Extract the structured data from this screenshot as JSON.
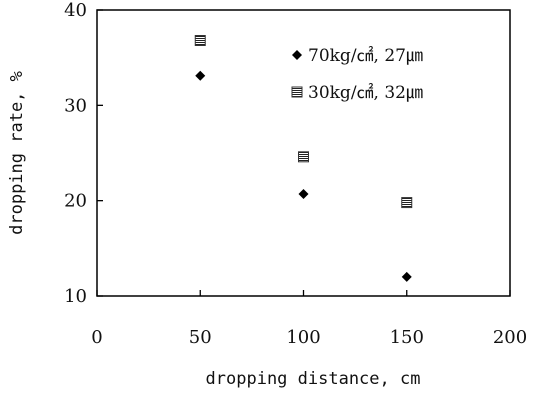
{
  "chart_data": {
    "type": "scatter",
    "title": "",
    "xlabel": "dropping distance, cm",
    "ylabel": "dropping rate, %",
    "xlim": [
      0,
      200
    ],
    "ylim": [
      10,
      40
    ],
    "x_ticks": [
      "0",
      "50",
      "100",
      "150",
      "200"
    ],
    "y_ticks": [
      "10",
      "20",
      "30",
      "40"
    ],
    "grid": false,
    "legend_position": "top-right",
    "series": [
      {
        "name": "70kg/㎠, 27㎛",
        "marker": "diamond",
        "color": "#000000",
        "points": [
          {
            "x": 50,
            "y": 33.1
          },
          {
            "x": 100,
            "y": 20.7
          },
          {
            "x": 150,
            "y": 12.0
          }
        ]
      },
      {
        "name": "30kg/㎠, 32㎛",
        "marker": "hatched-square",
        "color": "#333333",
        "points": [
          {
            "x": 50,
            "y": 36.8
          },
          {
            "x": 100,
            "y": 24.6
          },
          {
            "x": 150,
            "y": 19.8
          }
        ]
      }
    ]
  }
}
